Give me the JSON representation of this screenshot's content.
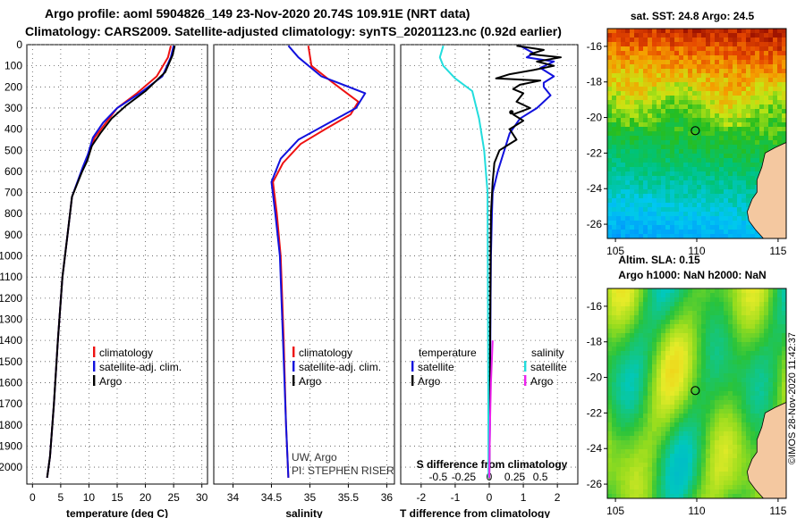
{
  "header": {
    "line1": "Argo profile: aoml 5904826_149 23-Nov-2020 20.74S 109.91E (NRT data)",
    "line2": "Climatology: CARS2009. Satellite-adjusted climatology: synTS_20201123.nc (0.92d earlier)"
  },
  "credit": "©IMOS 28-Nov-2020 11:42:37",
  "colors": {
    "climatology": "#ee1111",
    "satellite": "#1111dd",
    "argo": "#000000",
    "satellite_salinity": "#22dddd",
    "argo_salinity": "#ee22ee"
  },
  "chart_data": [
    {
      "type": "line",
      "xlabel": "temperature (deg C)",
      "xlim": [
        -1,
        31
      ],
      "xticks": [
        "0",
        "5",
        "10",
        "15",
        "20",
        "25",
        "30"
      ],
      "xtick_values": [
        0,
        5,
        10,
        15,
        20,
        25,
        30
      ],
      "ylim": [
        0,
        2080
      ],
      "yticks": [
        "0",
        "100",
        "200",
        "300",
        "400",
        "500",
        "600",
        "700",
        "800",
        "900",
        "1000",
        "1100",
        "1200",
        "1300",
        "1400",
        "1500",
        "1600",
        "1700",
        "1800",
        "1900",
        "2000"
      ],
      "ytick_values": [
        0,
        100,
        200,
        300,
        400,
        500,
        600,
        700,
        800,
        900,
        1000,
        1100,
        1200,
        1300,
        1400,
        1500,
        1600,
        1700,
        1800,
        1900,
        2000
      ],
      "legend": [
        "climatology",
        "satellite-adj. clim.",
        "Argo"
      ],
      "series": [
        {
          "name": "climatology",
          "x": [
            24.5,
            24,
            22,
            18.5,
            15,
            13,
            11,
            10,
            9,
            7,
            6.2,
            5.3,
            4.5,
            3.8,
            3.1,
            2.6
          ],
          "y": [
            5,
            60,
            150,
            230,
            300,
            370,
            440,
            520,
            580,
            720,
            900,
            1100,
            1400,
            1700,
            1950,
            2050
          ]
        },
        {
          "name": "satellite-adj. clim.",
          "x": [
            25,
            24.5,
            23,
            19,
            15,
            12.5,
            10.7,
            9.8,
            8.9,
            7,
            6.2,
            5.3,
            4.5,
            3.8,
            3.1,
            2.6
          ],
          "y": [
            5,
            60,
            150,
            230,
            300,
            370,
            440,
            520,
            580,
            720,
            900,
            1100,
            1400,
            1700,
            1950,
            2050
          ]
        },
        {
          "name": "Argo",
          "x": [
            25.2,
            24.8,
            23.5,
            20,
            16.5,
            14,
            12,
            10.5,
            9.7,
            8.8,
            7,
            6.2,
            5.3,
            4.5,
            3.8,
            3.1,
            2.6
          ],
          "y": [
            5,
            50,
            130,
            220,
            290,
            350,
            420,
            480,
            550,
            600,
            720,
            900,
            1100,
            1400,
            1700,
            1950,
            2050
          ]
        }
      ]
    },
    {
      "type": "line",
      "xlabel": "salinity",
      "xlim": [
        33.75,
        36.1
      ],
      "xticks": [
        "34",
        "34.5",
        "35",
        "35.5",
        "36"
      ],
      "xtick_values": [
        34,
        34.5,
        35,
        35.5,
        36
      ],
      "ylim": [
        0,
        2080
      ],
      "legend": [
        "climatology",
        "satellite-adj. clim.",
        "Argo"
      ],
      "series": [
        {
          "name": "climatology",
          "x": [
            34.98,
            35.02,
            35.3,
            35.63,
            35.53,
            35.2,
            34.88,
            34.65,
            34.52,
            34.57,
            34.62,
            34.66,
            34.69,
            34.72
          ],
          "y": [
            5,
            100,
            180,
            270,
            330,
            400,
            470,
            560,
            650,
            800,
            1000,
            1400,
            1800,
            2050
          ]
        },
        {
          "name": "satellite-adj. clim.",
          "x": [
            34.72,
            34.85,
            35.15,
            35.72,
            35.6,
            35.2,
            34.85,
            34.62,
            34.5,
            34.55,
            34.61,
            34.65,
            34.69,
            34.72
          ],
          "y": [
            5,
            60,
            150,
            230,
            300,
            380,
            450,
            540,
            650,
            800,
            1000,
            1400,
            1800,
            2050
          ]
        }
      ],
      "annotations": [
        "UW, Argo",
        "PI: STEPHEN RISER"
      ]
    },
    {
      "type": "line",
      "title": "S difference from climatology",
      "xlabel": "T difference from climatology",
      "xlim": [
        -2.6,
        2.6
      ],
      "xticks": [
        "-2",
        "-1",
        "0",
        "1",
        "2"
      ],
      "xtick_values": [
        -2,
        -1,
        0,
        1,
        2
      ],
      "top_xticks": [
        "-0.5",
        "-0.25",
        "0",
        "0.25",
        "0.5"
      ],
      "top_xtick_values": [
        -1.5,
        -0.75,
        0,
        0.75,
        1.5
      ],
      "ylim": [
        0,
        2080
      ],
      "legend_temperature": [
        "satellite",
        "Argo"
      ],
      "legend_salinity": [
        "satellite",
        "Argo"
      ],
      "legend_headers": [
        "temperature",
        "salinity"
      ],
      "series": [
        {
          "name": "temperature satellite",
          "x": [
            0.9,
            1.3,
            1.1,
            1.9,
            1.5,
            1.9,
            1.6,
            1.6,
            1.8,
            1.4,
            0.9,
            0.6,
            0.25,
            0.1,
            0.08,
            0.05,
            0.04,
            0.03,
            0.02,
            0.0
          ],
          "y": [
            5,
            40,
            60,
            80,
            110,
            150,
            180,
            200,
            240,
            300,
            350,
            420,
            600,
            700,
            800,
            1000,
            1200,
            1500,
            1800,
            2050
          ]
        },
        {
          "name": "Argo",
          "x": [
            0.8,
            1.6,
            1.2,
            2.1,
            1.4,
            1.9,
            1.3,
            0.6,
            0.2,
            1.5,
            0.9,
            0.7,
            1.0,
            0.8,
            1.2,
            0.7,
            1.0,
            0.6,
            0.8,
            0.3,
            0.15,
            0.1,
            0.05,
            0.04,
            0.02,
            0.0
          ],
          "y": [
            5,
            25,
            45,
            60,
            80,
            100,
            120,
            140,
            160,
            170,
            190,
            210,
            230,
            270,
            300,
            330,
            360,
            400,
            450,
            500,
            560,
            650,
            800,
            1000,
            1500,
            2050
          ]
        },
        {
          "name": "salinity satellite",
          "x": [
            -1.35,
            -1.45,
            -1.35,
            -1.0,
            -0.5,
            -0.3,
            -0.15,
            -0.05,
            -0.02
          ],
          "y": [
            5,
            60,
            100,
            160,
            220,
            350,
            500,
            700,
            2050
          ]
        },
        {
          "name": "salinity Argo",
          "x": [
            0.1,
            0.05,
            0.02,
            0.0
          ],
          "y": [
            1400,
            1600,
            1800,
            2050
          ]
        }
      ]
    },
    {
      "type": "heatmap",
      "title": "sat. SST: 24.8 Argo: 24.5",
      "xlim": [
        104.5,
        115.5
      ],
      "ylim": [
        -26.8,
        -15
      ],
      "xticks": [
        "105",
        "110",
        "115"
      ],
      "xtick_values": [
        105,
        110,
        115
      ],
      "yticks": [
        "-16",
        "-18",
        "-20",
        "-22",
        "-24",
        "-26"
      ],
      "ytick_values": [
        -16,
        -18,
        -20,
        -22,
        -24,
        -26
      ],
      "marker": {
        "lon": 109.91,
        "lat": -20.74
      }
    },
    {
      "type": "heatmap",
      "title": "Altim. SLA: 0.15",
      "subtitle": "Argo h1000: NaN h2000: NaN",
      "xlim": [
        104.5,
        115.5
      ],
      "ylim": [
        -26.8,
        -15
      ],
      "xticks": [
        "105",
        "110",
        "115"
      ],
      "xtick_values": [
        105,
        110,
        115
      ],
      "yticks": [
        "-16",
        "-18",
        "-20",
        "-22",
        "-24",
        "-26"
      ],
      "ytick_values": [
        -16,
        -18,
        -20,
        -22,
        -24,
        -26
      ],
      "marker": {
        "lon": 109.91,
        "lat": -20.74
      }
    }
  ]
}
